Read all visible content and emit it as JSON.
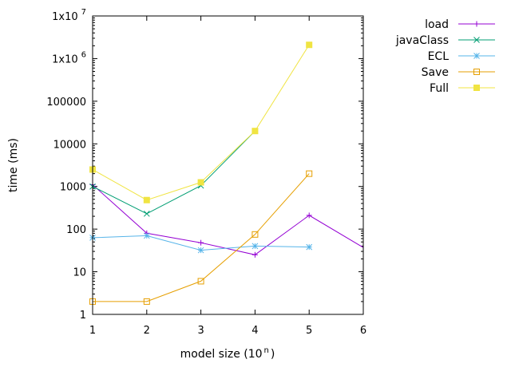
{
  "chart_data": {
    "type": "line",
    "title": "",
    "xlabel": "model size (10",
    "xlabel_sup": "n",
    "xlabel_close": ")",
    "ylabel": "time (ms)",
    "xlim": [
      1,
      6
    ],
    "ylim": [
      1,
      10000000
    ],
    "yscale": "log",
    "grid": false,
    "legend_position": "outside-right-top",
    "x_ticks": [
      1,
      2,
      3,
      4,
      5,
      6
    ],
    "x_tick_labels": [
      "1",
      "2",
      "3",
      "4",
      "5",
      "6"
    ],
    "y_ticks": [
      1,
      10,
      100,
      1000,
      10000,
      100000,
      1000000,
      10000000
    ],
    "y_tick_labels": [
      {
        "base": "1",
        "sup": ""
      },
      {
        "base": "10",
        "sup": ""
      },
      {
        "base": "100",
        "sup": ""
      },
      {
        "base": "1000",
        "sup": ""
      },
      {
        "base": "10000",
        "sup": ""
      },
      {
        "base": "100000",
        "sup": ""
      },
      {
        "base": "1x10",
        "sup": "6"
      },
      {
        "base": "1x10",
        "sup": "7"
      }
    ],
    "series": [
      {
        "name": "load",
        "color": "#9400d3",
        "marker": "plus",
        "x": [
          1,
          2,
          3,
          4,
          5,
          6
        ],
        "y": [
          1100,
          80,
          48,
          25,
          210,
          37
        ]
      },
      {
        "name": "javaClass",
        "color": "#009e73",
        "marker": "cross",
        "x": [
          1,
          2,
          3,
          4
        ],
        "y": [
          1000,
          230,
          1050,
          20000
        ]
      },
      {
        "name": "ECL",
        "color": "#56b4e9",
        "marker": "star",
        "x": [
          1,
          2,
          3,
          4,
          5
        ],
        "y": [
          63,
          70,
          32,
          40,
          38
        ]
      },
      {
        "name": "Save",
        "color": "#e69f00",
        "marker": "square-open",
        "x": [
          1,
          2,
          3,
          4,
          5
        ],
        "y": [
          2,
          2,
          6,
          75,
          2000
        ]
      },
      {
        "name": "Full",
        "color": "#f0e442",
        "marker": "square-filled",
        "x": [
          1,
          2,
          3,
          4,
          5
        ],
        "y": [
          2500,
          480,
          1250,
          20000,
          2100000
        ]
      }
    ]
  }
}
